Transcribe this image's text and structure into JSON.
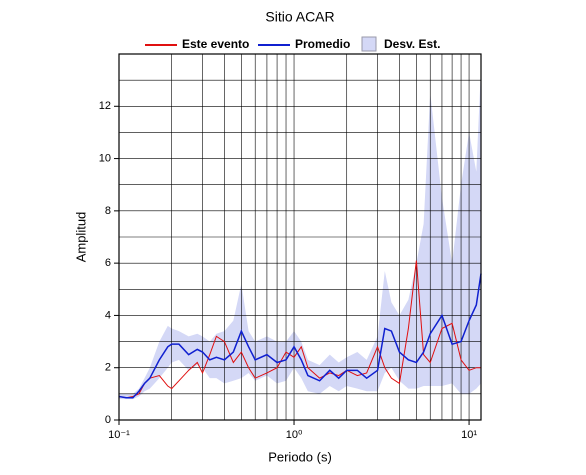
{
  "chart_data": {
    "type": "line",
    "title": "Sitio ACAR",
    "x_label": "Periodo (s)",
    "y_label": "Amplitud",
    "x_log": true,
    "grid": true,
    "legend": "top",
    "xlim": [
      0.1,
      11.7
    ],
    "ylim": [
      0,
      14
    ],
    "xticks": [
      {
        "value": 0.1,
        "label": "10⁻¹"
      },
      {
        "value": 1,
        "label": "10⁰"
      },
      {
        "value": 10,
        "label": "10¹"
      }
    ],
    "xminor": [
      0.2,
      0.3,
      0.4,
      0.5,
      0.6,
      0.7,
      0.8,
      0.9,
      2,
      3,
      4,
      5,
      6,
      7,
      8,
      9
    ],
    "yticks": [
      0,
      2,
      4,
      6,
      8,
      10,
      12
    ],
    "yminor": [
      1,
      3,
      5,
      7,
      9,
      11,
      13
    ],
    "x": [
      0.1,
      0.11,
      0.12,
      0.13,
      0.14,
      0.15,
      0.17,
      0.19,
      0.2,
      0.22,
      0.25,
      0.28,
      0.3,
      0.33,
      0.36,
      0.4,
      0.45,
      0.5,
      0.55,
      0.6,
      0.7,
      0.8,
      0.9,
      1.0,
      1.1,
      1.2,
      1.4,
      1.6,
      1.8,
      2.0,
      2.3,
      2.6,
      3.0,
      3.3,
      3.6,
      4.0,
      4.5,
      5.0,
      5.5,
      6.0,
      7.0,
      8.0,
      9.0,
      10,
      11,
      11.7
    ],
    "series": [
      {
        "name": "Este evento",
        "color": "#e01010",
        "values": [
          0.9,
          0.85,
          0.9,
          1.0,
          1.4,
          1.6,
          1.7,
          1.3,
          1.2,
          1.5,
          1.9,
          2.2,
          1.8,
          2.5,
          3.2,
          3.0,
          2.2,
          2.6,
          2.0,
          1.6,
          1.8,
          2.0,
          2.6,
          2.4,
          2.8,
          2.0,
          1.6,
          1.8,
          1.7,
          1.9,
          1.7,
          1.8,
          2.8,
          2.0,
          1.6,
          1.4,
          3.5,
          6.1,
          2.5,
          2.2,
          3.5,
          3.7,
          2.3,
          1.9,
          2.0,
          2.0
        ]
      },
      {
        "name": "Promedio",
        "color": "#1020d0",
        "values": [
          0.9,
          0.85,
          0.85,
          1.1,
          1.4,
          1.6,
          2.3,
          2.8,
          2.9,
          2.9,
          2.5,
          2.7,
          2.6,
          2.3,
          2.4,
          2.3,
          2.6,
          3.4,
          2.8,
          2.3,
          2.5,
          2.2,
          2.3,
          2.8,
          2.3,
          1.7,
          1.5,
          1.9,
          1.6,
          1.9,
          1.9,
          1.6,
          1.9,
          3.5,
          3.4,
          2.6,
          2.3,
          2.2,
          2.6,
          3.3,
          4.0,
          2.9,
          3.0,
          3.8,
          4.4,
          5.6
        ]
      },
      {
        "name": "Desv. Est.",
        "color": "#d4d8f6",
        "upper": [
          1.0,
          1.0,
          1.0,
          1.2,
          1.6,
          2.0,
          3.0,
          3.6,
          3.5,
          3.4,
          3.2,
          3.3,
          3.2,
          3.0,
          3.3,
          3.4,
          3.8,
          5.2,
          3.4,
          3.0,
          3.2,
          3.0,
          3.0,
          3.4,
          3.0,
          2.3,
          2.1,
          2.5,
          2.2,
          2.4,
          2.6,
          2.3,
          3.2,
          5.7,
          4.5,
          4.0,
          4.6,
          6.0,
          7.5,
          12.5,
          8.5,
          6.0,
          9.0,
          11.0,
          9.5,
          13.5
        ],
        "lower": [
          0.8,
          0.8,
          0.8,
          0.9,
          1.1,
          1.2,
          1.6,
          2.0,
          2.2,
          2.3,
          1.9,
          2.1,
          2.0,
          1.6,
          1.6,
          1.4,
          1.5,
          1.6,
          1.8,
          1.5,
          1.7,
          1.4,
          1.5,
          2.0,
          1.6,
          1.1,
          1.0,
          1.3,
          1.1,
          1.3,
          1.2,
          1.1,
          1.1,
          1.8,
          2.0,
          1.5,
          1.2,
          1.2,
          1.3,
          1.3,
          1.3,
          1.4,
          1.0,
          1.0,
          1.2,
          1.4
        ]
      }
    ]
  }
}
